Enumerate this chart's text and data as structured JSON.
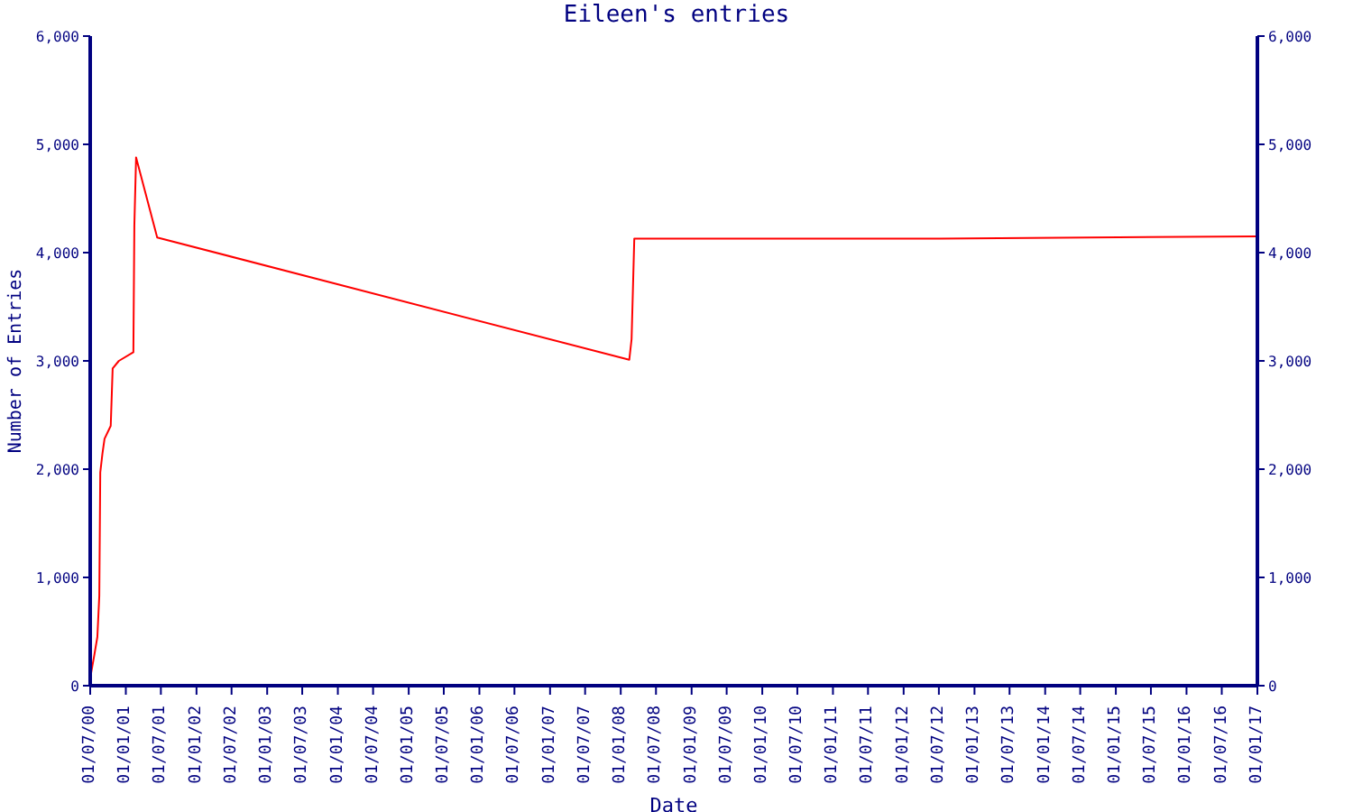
{
  "chart_data": {
    "type": "line",
    "title": "Eileen's entries",
    "xlabel": "Date",
    "ylabel": "Number of Entries",
    "x": [
      "2000-07-05",
      "2000-07-22",
      "2000-08-07",
      "2000-08-17",
      "2000-08-22",
      "2000-09-02",
      "2000-09-13",
      "2000-10-15",
      "2000-10-25",
      "2000-11-26",
      "2001-02-09",
      "2001-02-14",
      "2001-02-23",
      "2001-06-12",
      "2008-02-14",
      "2008-02-26",
      "2008-03-11",
      "2012-07-06",
      "2017-01-01"
    ],
    "series": [
      {
        "color": "#ff0000",
        "values": [
          110,
          280,
          450,
          830,
          1970,
          2140,
          2280,
          2400,
          2930,
          3000,
          3080,
          4250,
          4880,
          4140,
          3010,
          3200,
          4130,
          4130,
          4150
        ]
      }
    ],
    "xlim": [
      "2000-07-01",
      "2017-01-01"
    ],
    "xticks": [
      {
        "value": "2000-07-01",
        "label": "01/07/00"
      },
      {
        "value": "2001-01-01",
        "label": "01/01/01"
      },
      {
        "value": "2001-07-01",
        "label": "01/07/01"
      },
      {
        "value": "2002-01-01",
        "label": "01/01/02"
      },
      {
        "value": "2002-07-01",
        "label": "01/07/02"
      },
      {
        "value": "2003-01-01",
        "label": "01/01/03"
      },
      {
        "value": "2003-07-01",
        "label": "01/07/03"
      },
      {
        "value": "2004-01-01",
        "label": "01/01/04"
      },
      {
        "value": "2004-07-01",
        "label": "01/07/04"
      },
      {
        "value": "2005-01-01",
        "label": "01/01/05"
      },
      {
        "value": "2005-07-01",
        "label": "01/07/05"
      },
      {
        "value": "2006-01-01",
        "label": "01/01/06"
      },
      {
        "value": "2006-07-01",
        "label": "01/07/06"
      },
      {
        "value": "2007-01-01",
        "label": "01/01/07"
      },
      {
        "value": "2007-07-01",
        "label": "01/07/07"
      },
      {
        "value": "2008-01-01",
        "label": "01/01/08"
      },
      {
        "value": "2008-07-01",
        "label": "01/07/08"
      },
      {
        "value": "2009-01-01",
        "label": "01/01/09"
      },
      {
        "value": "2009-07-01",
        "label": "01/07/09"
      },
      {
        "value": "2010-01-01",
        "label": "01/01/10"
      },
      {
        "value": "2010-07-01",
        "label": "01/07/10"
      },
      {
        "value": "2011-01-01",
        "label": "01/01/11"
      },
      {
        "value": "2011-07-01",
        "label": "01/07/11"
      },
      {
        "value": "2012-01-01",
        "label": "01/01/12"
      },
      {
        "value": "2012-07-01",
        "label": "01/07/12"
      },
      {
        "value": "2013-01-01",
        "label": "01/01/13"
      },
      {
        "value": "2013-07-01",
        "label": "01/07/13"
      },
      {
        "value": "2014-01-01",
        "label": "01/01/14"
      },
      {
        "value": "2014-07-01",
        "label": "01/07/14"
      },
      {
        "value": "2015-01-01",
        "label": "01/01/15"
      },
      {
        "value": "2015-07-01",
        "label": "01/07/15"
      },
      {
        "value": "2016-01-01",
        "label": "01/01/16"
      },
      {
        "value": "2016-07-01",
        "label": "01/07/16"
      },
      {
        "value": "2017-01-01",
        "label": "01/01/17"
      }
    ],
    "ylim": [
      0,
      6000
    ],
    "yticks": [
      0,
      {
        "value": 1000,
        "label": "1,000"
      },
      {
        "value": 2000,
        "label": "2,000"
      },
      {
        "value": 3000,
        "label": "3,000"
      },
      {
        "value": 4000,
        "label": "4,000"
      },
      {
        "value": 5000,
        "label": "5,000"
      },
      {
        "value": 6000,
        "label": "6,000"
      }
    ],
    "y2lim": [
      0,
      6000
    ],
    "y2ticks": [
      0,
      {
        "value": 1000,
        "label": "1,000"
      },
      {
        "value": 2000,
        "label": "2,000"
      },
      {
        "value": 3000,
        "label": "3,000"
      },
      {
        "value": 4000,
        "label": "4,000"
      },
      {
        "value": 5000,
        "label": "5,000"
      },
      {
        "value": 6000,
        "label": "6,000"
      }
    ],
    "grid": false,
    "legend": false
  }
}
